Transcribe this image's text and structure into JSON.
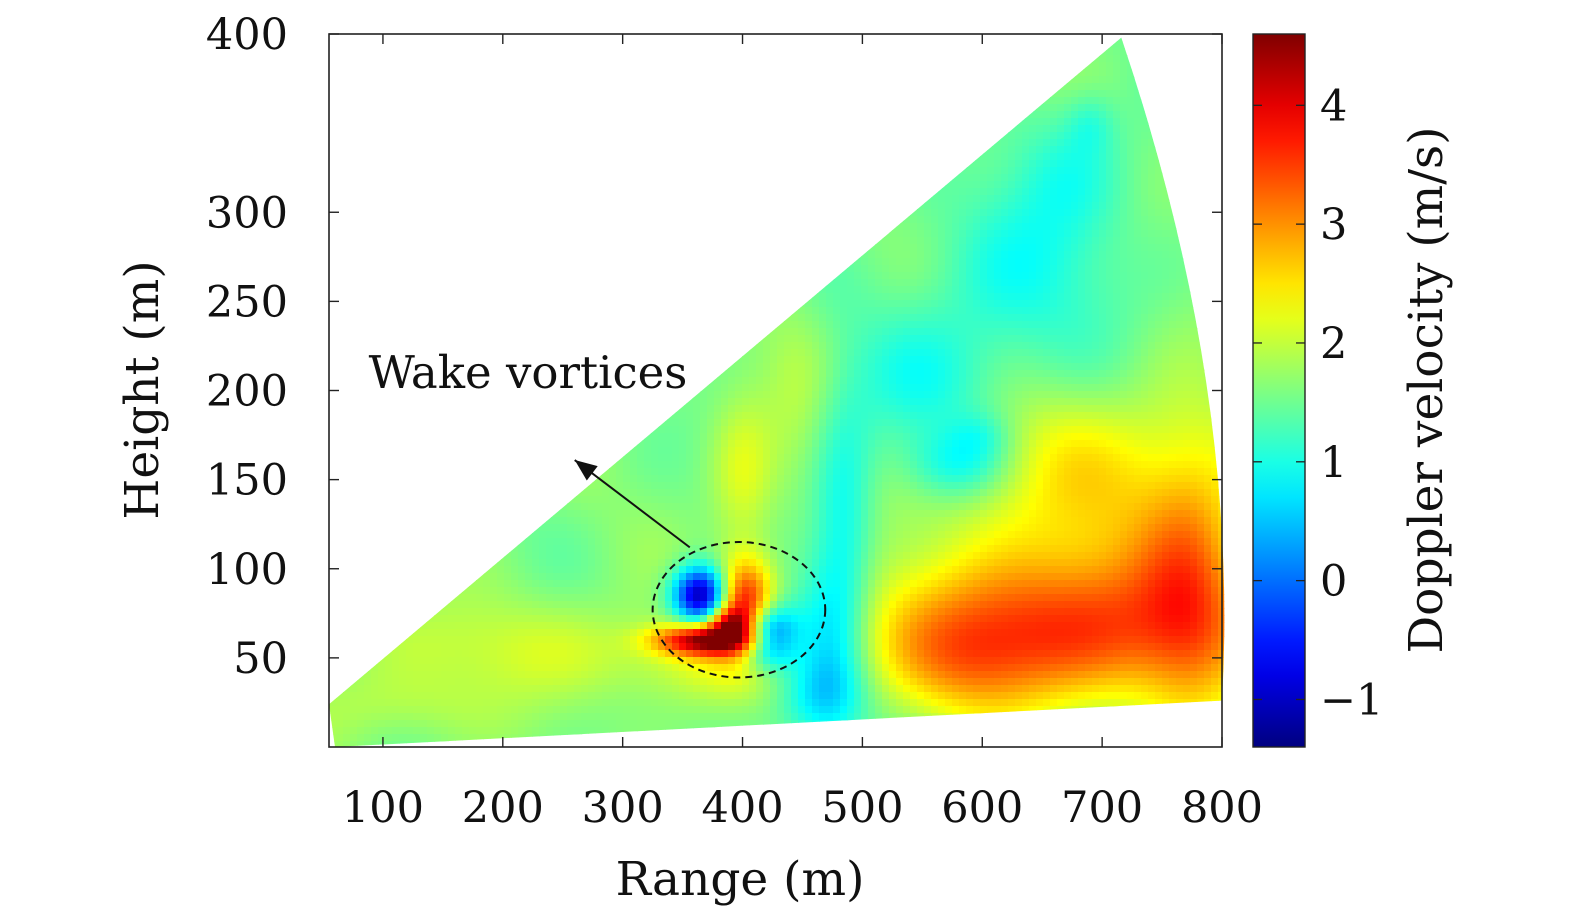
{
  "chart_data": {
    "type": "heatmap",
    "subtype": "lidar-rhi-scan-sector",
    "xlabel": "Range (m)",
    "ylabel": "Height (m)",
    "xlim": [
      55,
      800
    ],
    "ylim": [
      0,
      400
    ],
    "x_ticks": [
      100,
      200,
      300,
      400,
      500,
      600,
      700,
      800
    ],
    "x_tick_labels": [
      "100",
      "200",
      "300",
      "400",
      "500",
      "600",
      "700",
      "800"
    ],
    "y_ticks": [
      50,
      100,
      150,
      200,
      250,
      300,
      400
    ],
    "y_tick_labels": [
      "50",
      "100",
      "150",
      "200",
      "250",
      "300",
      "400"
    ],
    "colorbar": {
      "label": "Doppler velocity (m/s)",
      "range": [
        -1.4,
        4.6
      ],
      "ticks": [
        -1,
        0,
        1,
        2,
        3,
        4
      ],
      "tick_labels": [
        "−1",
        "0",
        "1",
        "2",
        "3",
        "4"
      ],
      "colormap": "jet"
    },
    "sector": {
      "origin_range_m": 55,
      "lower_edge": [
        [
          60,
          0
        ],
        [
          800,
          26
        ]
      ],
      "upper_edge": [
        [
          55,
          24
        ],
        [
          716,
          398
        ]
      ],
      "arc_end": [
        [
          716,
          398
        ],
        [
          800,
          26
        ]
      ]
    },
    "field": {
      "background_value": 1.6,
      "blobs": [
        {
          "x": 380,
          "y": 48,
          "sx": 60,
          "sy": 16,
          "v": 0.5
        },
        {
          "x": 205,
          "y": 55,
          "sx": 95,
          "sy": 20,
          "v": 0.45
        },
        {
          "x": 115,
          "y": 22,
          "sx": 55,
          "sy": 14,
          "v": 0.3
        },
        {
          "x": 400,
          "y": 150,
          "sx": 18,
          "sy": 34,
          "v": 0.55
        },
        {
          "x": 445,
          "y": 200,
          "sx": 20,
          "sy": 38,
          "v": 0.25
        },
        {
          "x": 470,
          "y": 52,
          "sx": 22,
          "sy": 40,
          "v": -0.9
        },
        {
          "x": 485,
          "y": 125,
          "sx": 18,
          "sy": 50,
          "v": -0.7
        },
        {
          "x": 560,
          "y": 200,
          "sx": 50,
          "sy": 32,
          "v": -0.6
        },
        {
          "x": 640,
          "y": 268,
          "sx": 60,
          "sy": 36,
          "v": -0.55
        },
        {
          "x": 580,
          "y": 158,
          "sx": 30,
          "sy": 14,
          "v": -0.75
        },
        {
          "x": 600,
          "y": 175,
          "sx": 18,
          "sy": 10,
          "v": -0.35
        },
        {
          "x": 672,
          "y": 325,
          "sx": 35,
          "sy": 26,
          "v": -0.45
        },
        {
          "x": 690,
          "y": 350,
          "sx": 14,
          "sy": 12,
          "v": -0.35
        },
        {
          "x": 460,
          "y": 30,
          "sx": 30,
          "sy": 16,
          "v": -0.5
        },
        {
          "x": 660,
          "y": 64,
          "sx": 105,
          "sy": 28,
          "v": 1.7
        },
        {
          "x": 700,
          "y": 120,
          "sx": 95,
          "sy": 40,
          "v": 0.7
        },
        {
          "x": 775,
          "y": 92,
          "sx": 30,
          "sy": 55,
          "v": 1.0
        },
        {
          "x": 590,
          "y": 45,
          "sx": 45,
          "sy": 22,
          "v": 0.6
        },
        {
          "x": 670,
          "y": 165,
          "sx": 90,
          "sy": 26,
          "v": 0.4
        }
      ],
      "vortices": [
        {
          "x": 365,
          "y": 85,
          "sx": 16,
          "sy": 11,
          "v": -2.9
        },
        {
          "x": 418,
          "y": 62,
          "sx": 18,
          "sy": 12,
          "v": -2.6
        },
        {
          "x": 372,
          "y": 60,
          "sx": 30,
          "sy": 6,
          "v": 2.7
        },
        {
          "x": 402,
          "y": 78,
          "sx": 16,
          "sy": 18,
          "v": 2.4
        },
        {
          "x": 390,
          "y": 70,
          "sx": 12,
          "sy": 6,
          "v": 1.4
        }
      ]
    },
    "annotation": {
      "text": "Wake vortices",
      "circle_center": [
        397,
        77
      ],
      "circle_radius_x_m": 72,
      "circle_radius_y_m": 38,
      "arrow_from": [
        356,
        112
      ],
      "arrow_to": [
        260,
        161
      ]
    }
  }
}
